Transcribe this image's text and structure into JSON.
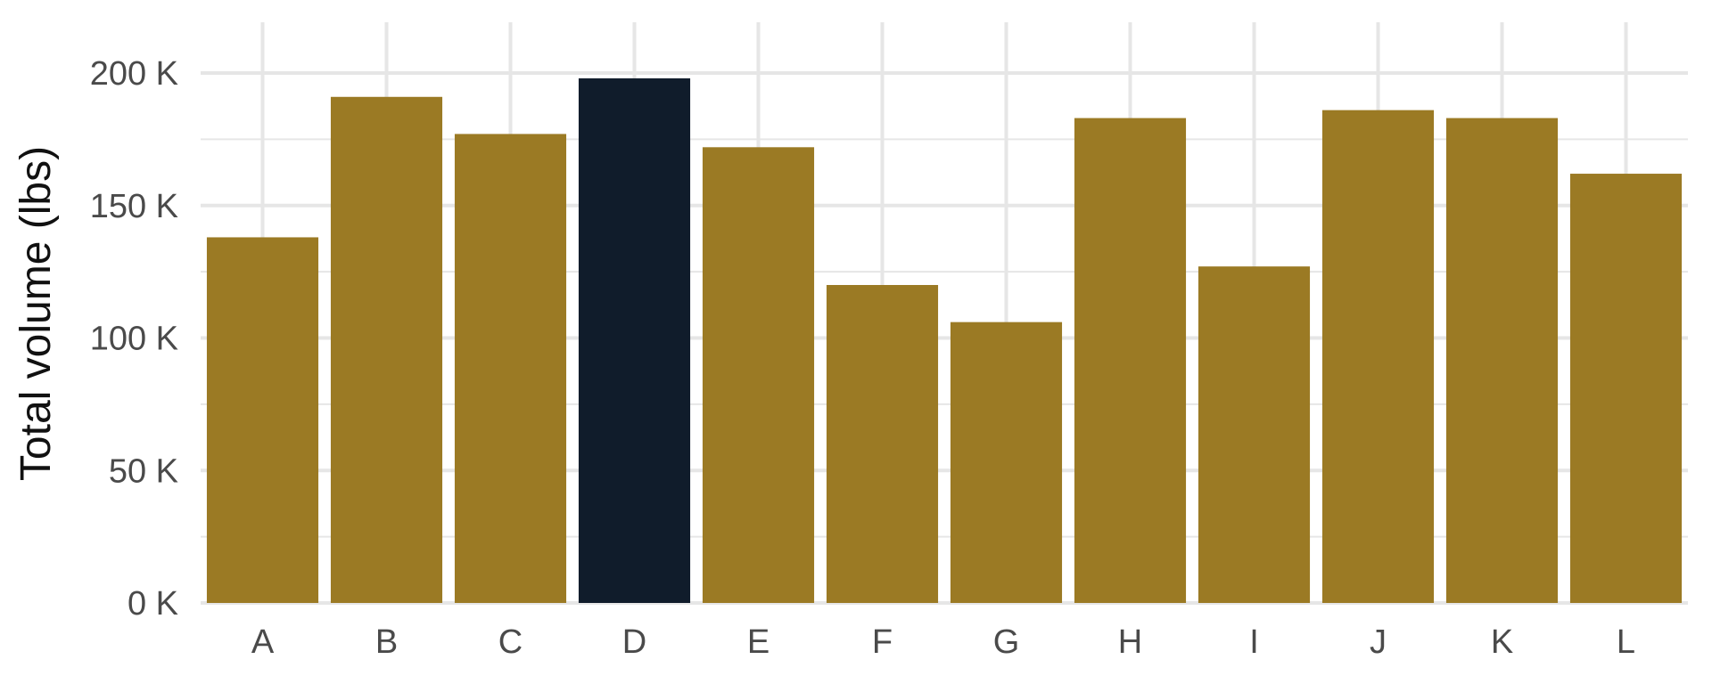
{
  "chart_data": {
    "type": "bar",
    "title": "",
    "xlabel": "",
    "ylabel": "Total volume (lbs)",
    "categories": [
      "A",
      "B",
      "C",
      "D",
      "E",
      "F",
      "G",
      "H",
      "I",
      "J",
      "K",
      "L"
    ],
    "values": [
      138000,
      191000,
      177000,
      198000,
      172000,
      120000,
      106000,
      183000,
      127000,
      186000,
      183000,
      162000
    ],
    "highlight_category": "D",
    "ylim": [
      0,
      200000
    ],
    "y_ticks": [
      0,
      50000,
      100000,
      150000,
      200000
    ],
    "y_tick_labels": [
      "0 K",
      "50 K",
      "100 K",
      "150 K",
      "200 K"
    ],
    "grid": true,
    "legend": "none",
    "colors": {
      "bar": "#9b7a24",
      "highlight": "#101c2b",
      "grid": "#e6e6e6",
      "background": "#ffffff"
    }
  }
}
